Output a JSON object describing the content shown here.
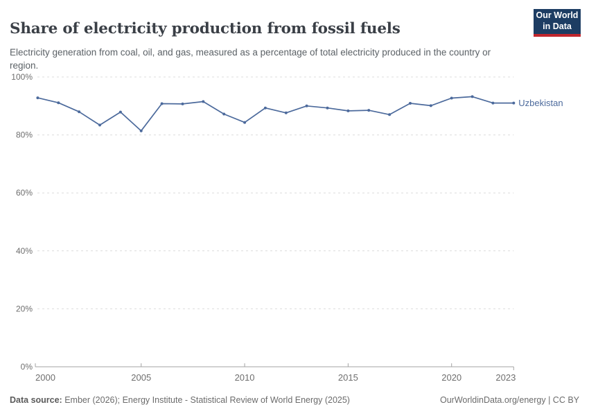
{
  "header": {
    "title": "Share of electricity production from fossil fuels",
    "subtitle": "Electricity generation from coal, oil, and gas, measured as a percentage of total electricity produced in the country or region."
  },
  "logo": {
    "line1": "Our World",
    "line2": "in Data"
  },
  "footer": {
    "source_label": "Data source:",
    "source_text": " Ember (2026); Energy Institute - Statistical Review of World Energy (2025)",
    "credit": "OurWorldinData.org/energy | CC BY"
  },
  "colors": {
    "line": "#4c6a9c",
    "grid": "#dcdcdc",
    "axis": "#a3a3a3",
    "tick_text": "#6e6e6e",
    "title_text": "#3a3f46",
    "subtitle_text": "#5b6166",
    "logo_navy": "#1d3d63",
    "logo_red": "#c0262d"
  },
  "chart_data": {
    "type": "line",
    "title": "Share of electricity production from fossil fuels",
    "subtitle": "Electricity generation from coal, oil, and gas, measured as a percentage of total electricity produced in the country or region.",
    "xlabel": "",
    "ylabel": "",
    "xlim": [
      2000,
      2023
    ],
    "ylim": [
      0,
      100
    ],
    "grid": "horizontal-dashed",
    "legend_position": "end-of-line",
    "x": [
      2000,
      2001,
      2002,
      2003,
      2004,
      2005,
      2006,
      2007,
      2008,
      2009,
      2010,
      2011,
      2012,
      2013,
      2014,
      2015,
      2016,
      2017,
      2018,
      2019,
      2020,
      2021,
      2022,
      2023
    ],
    "series": [
      {
        "name": "Uzbekistan",
        "color": "#4c6a9c",
        "values": [
          92.8,
          91.1,
          88.0,
          83.4,
          87.9,
          81.4,
          90.8,
          90.7,
          91.5,
          87.2,
          84.3,
          89.3,
          87.6,
          90.0,
          89.3,
          88.3,
          88.5,
          87.0,
          90.9,
          90.1,
          92.7,
          93.2,
          91.0,
          91.0
        ]
      }
    ],
    "x_ticks": [
      {
        "v": 2000,
        "label": "2000",
        "anchor": "start"
      },
      {
        "v": 2005,
        "label": "2005",
        "anchor": "middle"
      },
      {
        "v": 2010,
        "label": "2010",
        "anchor": "middle"
      },
      {
        "v": 2015,
        "label": "2015",
        "anchor": "middle"
      },
      {
        "v": 2020,
        "label": "2020",
        "anchor": "middle"
      },
      {
        "v": 2023,
        "label": "2023",
        "anchor": "end"
      }
    ],
    "y_ticks": [
      {
        "v": 0,
        "label": "0%"
      },
      {
        "v": 20,
        "label": "20%"
      },
      {
        "v": 40,
        "label": "40%"
      },
      {
        "v": 60,
        "label": "60%"
      },
      {
        "v": 80,
        "label": "80%"
      },
      {
        "v": 100,
        "label": "100%"
      }
    ]
  }
}
